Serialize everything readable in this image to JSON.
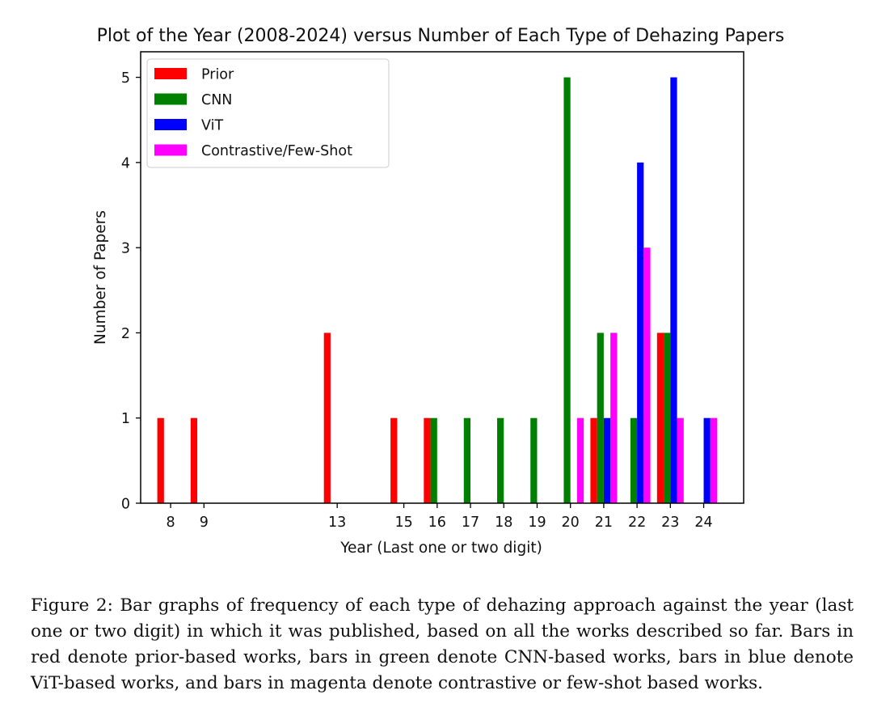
{
  "chart_data": {
    "type": "bar",
    "title": "Plot of the Year (2008-2024) versus Number of Each Type of Dehazing Papers",
    "xlabel": "Year (Last one or two digit)",
    "ylabel": "Number of Papers",
    "x_ticks": [
      8,
      9,
      13,
      15,
      16,
      17,
      18,
      19,
      20,
      21,
      22,
      23,
      24
    ],
    "xlim": [
      7.1,
      25.2
    ],
    "ylim": [
      0,
      5.3
    ],
    "y_ticks": [
      0,
      1,
      2,
      3,
      4,
      5
    ],
    "grid": false,
    "legend_position": "upper-left",
    "series": [
      {
        "name": "Prior",
        "color": "#ff0000",
        "points": [
          [
            8,
            1
          ],
          [
            9,
            1
          ],
          [
            13,
            2
          ],
          [
            15,
            1
          ],
          [
            16,
            1
          ],
          [
            21,
            1
          ],
          [
            23,
            2
          ]
        ]
      },
      {
        "name": "CNN",
        "color": "#008000",
        "points": [
          [
            16,
            1
          ],
          [
            17,
            1
          ],
          [
            18,
            1
          ],
          [
            19,
            1
          ],
          [
            20,
            5
          ],
          [
            21,
            2
          ],
          [
            22,
            1
          ],
          [
            23,
            2
          ]
        ]
      },
      {
        "name": "ViT",
        "color": "#0000ff",
        "points": [
          [
            21,
            1
          ],
          [
            22,
            4
          ],
          [
            23,
            5
          ],
          [
            24,
            1
          ]
        ]
      },
      {
        "name": "Contrastive/Few-Shot",
        "color": "#ff00ff",
        "points": [
          [
            20,
            1
          ],
          [
            21,
            2
          ],
          [
            22,
            3
          ],
          [
            23,
            1
          ],
          [
            24,
            1
          ]
        ]
      }
    ]
  },
  "caption": "Figure 2: Bar graphs of frequency of each type of dehazing approach against the year (last one or two digit) in which it was published, based on all the works described so far. Bars in red denote prior-based works, bars in green denote CNN-based works, bars in blue denote ViT-based works, and bars in magenta denote contrastive or few-shot based works."
}
